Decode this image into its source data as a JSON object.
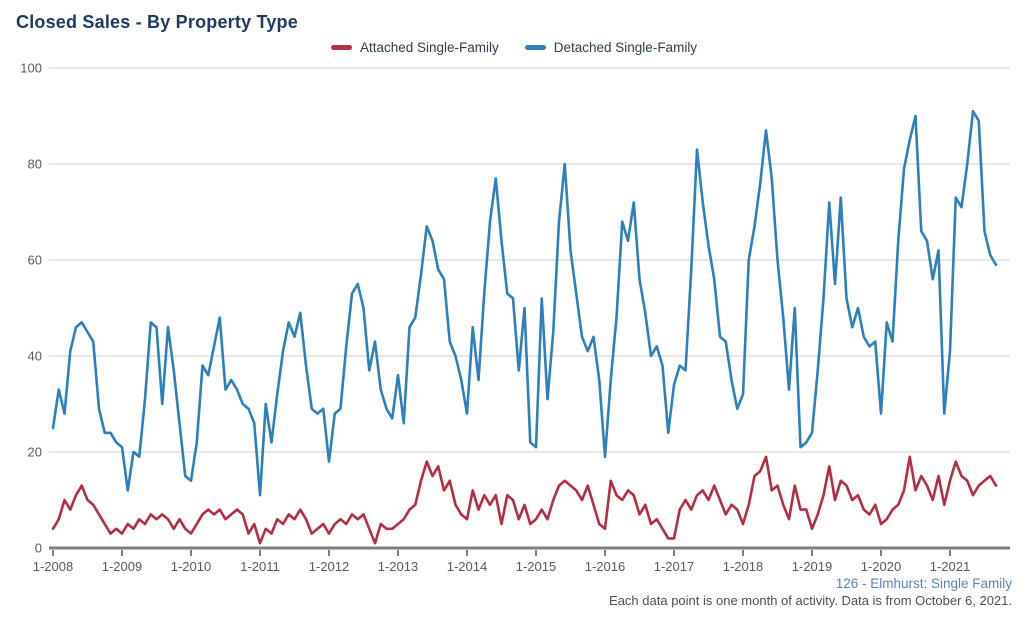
{
  "header": {
    "title": "Closed Sales - By Property Type"
  },
  "legend": [
    {
      "label": "Attached Single-Family",
      "color": "#b32e42"
    },
    {
      "label": "Detached Single-Family",
      "color": "#2d80ba"
    }
  ],
  "footer": {
    "source": "126 - Elmhurst: Single Family",
    "note": "Each data point is one month of activity. Data is from October 6, 2021."
  },
  "colors": {
    "title_navy": "#1e3a5f",
    "attached_red": "#b32e42",
    "detached_blue": "#2d80ba",
    "grid_gray": "#cfcfcf",
    "axis_gray": "#7f7f7f",
    "label_gray": "#595959",
    "footer_blue": "#5e81b5"
  },
  "chart_data": {
    "type": "line",
    "title": "Closed Sales - By Property Type",
    "x_unit": "month",
    "x_start": "1-2008",
    "x_end": "9-2021",
    "x_tick_labels": [
      "1-2008",
      "1-2009",
      "1-2010",
      "1-2011",
      "1-2012",
      "1-2013",
      "1-2014",
      "1-2015",
      "1-2016",
      "1-2017",
      "1-2018",
      "1-2019",
      "1-2020",
      "1-2021"
    ],
    "ylim": [
      0,
      100
    ],
    "y_ticks": [
      0,
      20,
      40,
      60,
      80,
      100
    ],
    "grid": true,
    "legend_position": "top",
    "series": [
      {
        "name": "Attached Single-Family",
        "color": "#b32e42",
        "values": [
          4,
          6,
          10,
          8,
          11,
          13,
          10,
          9,
          7,
          5,
          3,
          4,
          3,
          5,
          4,
          6,
          5,
          7,
          6,
          7,
          6,
          4,
          6,
          4,
          3,
          5,
          7,
          8,
          7,
          8,
          6,
          7,
          8,
          7,
          3,
          5,
          1,
          4,
          3,
          6,
          5,
          7,
          6,
          8,
          6,
          3,
          4,
          5,
          3,
          5,
          6,
          5,
          7,
          6,
          7,
          4,
          1,
          5,
          4,
          4,
          5,
          6,
          8,
          9,
          14,
          18,
          15,
          17,
          12,
          14,
          9,
          7,
          6,
          12,
          8,
          11,
          9,
          11,
          5,
          11,
          10,
          6,
          9,
          5,
          6,
          8,
          6,
          10,
          13,
          14,
          13,
          12,
          10,
          13,
          9,
          5,
          4,
          14,
          11,
          10,
          12,
          11,
          7,
          9,
          5,
          6,
          4,
          2,
          2,
          8,
          10,
          8,
          11,
          12,
          10,
          13,
          10,
          7,
          9,
          8,
          5,
          9,
          15,
          16,
          19,
          12,
          13,
          9,
          6,
          13,
          8,
          8,
          4,
          7,
          11,
          17,
          10,
          14,
          13,
          10,
          11,
          8,
          7,
          9,
          5,
          6,
          8,
          9,
          12,
          19,
          12,
          15,
          13,
          10,
          15,
          9,
          14,
          18,
          15,
          14,
          11,
          13,
          14,
          15,
          13
        ]
      },
      {
        "name": "Detached Single-Family",
        "color": "#2d80ba",
        "values": [
          25,
          33,
          28,
          41,
          46,
          47,
          45,
          43,
          29,
          24,
          24,
          22,
          21,
          12,
          20,
          19,
          31,
          47,
          46,
          30,
          46,
          37,
          26,
          15,
          14,
          22,
          38,
          36,
          42,
          48,
          33,
          35,
          33,
          30,
          29,
          26,
          11,
          30,
          22,
          32,
          41,
          47,
          44,
          49,
          38,
          29,
          28,
          29,
          18,
          28,
          29,
          42,
          53,
          55,
          50,
          37,
          43,
          33,
          29,
          27,
          36,
          26,
          46,
          48,
          57,
          67,
          64,
          58,
          56,
          43,
          40,
          35,
          28,
          46,
          35,
          53,
          68,
          77,
          64,
          53,
          52,
          37,
          50,
          22,
          21,
          52,
          31,
          45,
          68,
          80,
          62,
          53,
          44,
          41,
          44,
          35,
          19,
          35,
          48,
          68,
          64,
          72,
          56,
          49,
          40,
          42,
          38,
          24,
          34,
          38,
          37,
          58,
          83,
          72,
          63,
          56,
          44,
          43,
          35,
          29,
          32,
          60,
          67,
          76,
          87,
          77,
          60,
          48,
          33,
          50,
          21,
          22,
          24,
          37,
          52,
          72,
          55,
          73,
          52,
          46,
          50,
          44,
          42,
          43,
          28,
          47,
          43,
          64,
          79,
          85,
          90,
          66,
          64,
          56,
          62,
          28,
          41,
          73,
          71,
          80,
          91,
          89,
          66,
          61,
          59
        ]
      }
    ]
  }
}
